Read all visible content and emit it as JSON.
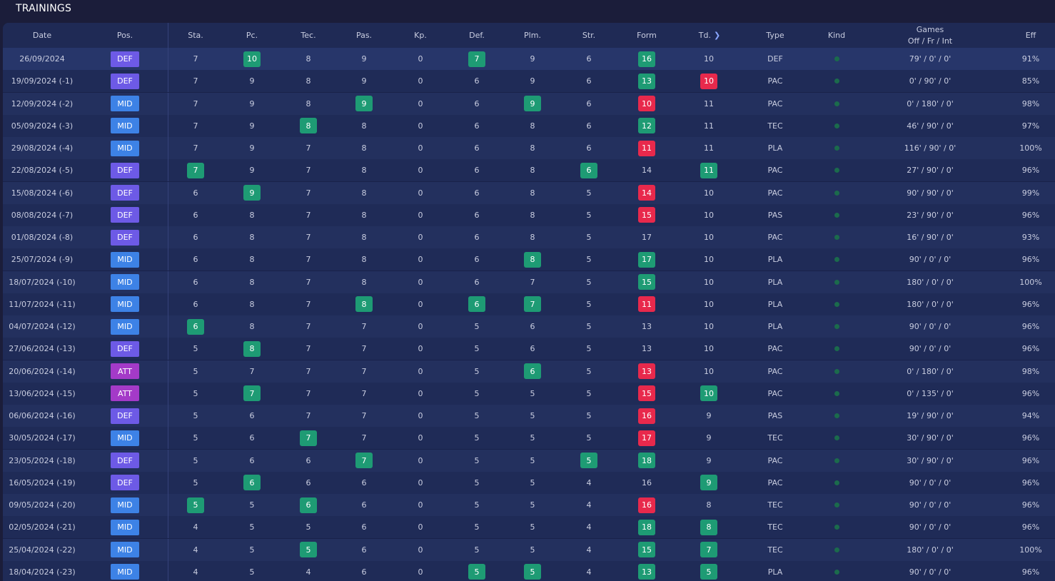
{
  "title": "TRAININGS",
  "headers": {
    "date": "Date",
    "pos": "Pos.",
    "sta": "Sta.",
    "pc": "Pc.",
    "tec": "Tec.",
    "pas": "Pas.",
    "kp": "Kp.",
    "def": "Def.",
    "plm": "Plm.",
    "str": "Str.",
    "form": "Form",
    "td": "Td.",
    "type": "Type",
    "kind": "Kind",
    "games_line1": "Games",
    "games_line2": "Off / Fr / Int",
    "eff": "Eff",
    "sort_icon": "chevron-right-icon"
  },
  "colors": {
    "green": "#1e9b74",
    "red": "#e8294c",
    "DEF": "#6d5ae6",
    "MID": "#3d82e6",
    "ATT": "#a43ac8"
  },
  "rows": [
    {
      "date": "26/09/2024",
      "pos": "DEF",
      "sta": [
        "7",
        ""
      ],
      "pc": [
        "10",
        "g"
      ],
      "tec": [
        "8",
        ""
      ],
      "pas": [
        "9",
        ""
      ],
      "kp": [
        "0",
        ""
      ],
      "def": [
        "7",
        "g"
      ],
      "plm": [
        "9",
        ""
      ],
      "str": [
        "6",
        ""
      ],
      "form": [
        "16",
        "g"
      ],
      "td": [
        "10",
        ""
      ],
      "type": "DEF",
      "games": "79' / 0' / 0'",
      "eff": "91%"
    },
    {
      "date": "19/09/2024 (-1)",
      "pos": "DEF",
      "sta": [
        "7",
        ""
      ],
      "pc": [
        "9",
        ""
      ],
      "tec": [
        "8",
        ""
      ],
      "pas": [
        "9",
        ""
      ],
      "kp": [
        "0",
        ""
      ],
      "def": [
        "6",
        ""
      ],
      "plm": [
        "9",
        ""
      ],
      "str": [
        "6",
        ""
      ],
      "form": [
        "13",
        "g"
      ],
      "td": [
        "10",
        "r"
      ],
      "type": "PAC",
      "games": "0' / 90' / 0'",
      "eff": "85%"
    },
    {
      "date": "12/09/2024 (-2)",
      "pos": "MID",
      "sta": [
        "7",
        ""
      ],
      "pc": [
        "9",
        ""
      ],
      "tec": [
        "8",
        ""
      ],
      "pas": [
        "9",
        "g"
      ],
      "kp": [
        "0",
        ""
      ],
      "def": [
        "6",
        ""
      ],
      "plm": [
        "9",
        "g"
      ],
      "str": [
        "6",
        ""
      ],
      "form": [
        "10",
        "r"
      ],
      "td": [
        "11",
        ""
      ],
      "type": "PAC",
      "games": "0' / 180' / 0'",
      "eff": "98%"
    },
    {
      "date": "05/09/2024 (-3)",
      "pos": "MID",
      "sta": [
        "7",
        ""
      ],
      "pc": [
        "9",
        ""
      ],
      "tec": [
        "8",
        "g"
      ],
      "pas": [
        "8",
        ""
      ],
      "kp": [
        "0",
        ""
      ],
      "def": [
        "6",
        ""
      ],
      "plm": [
        "8",
        ""
      ],
      "str": [
        "6",
        ""
      ],
      "form": [
        "12",
        "g"
      ],
      "td": [
        "11",
        ""
      ],
      "type": "TEC",
      "games": "46' / 90' / 0'",
      "eff": "97%"
    },
    {
      "date": "29/08/2024 (-4)",
      "pos": "MID",
      "sta": [
        "7",
        ""
      ],
      "pc": [
        "9",
        ""
      ],
      "tec": [
        "7",
        ""
      ],
      "pas": [
        "8",
        ""
      ],
      "kp": [
        "0",
        ""
      ],
      "def": [
        "6",
        ""
      ],
      "plm": [
        "8",
        ""
      ],
      "str": [
        "6",
        ""
      ],
      "form": [
        "11",
        "r"
      ],
      "td": [
        "11",
        ""
      ],
      "type": "PLA",
      "games": "116' / 90' / 0'",
      "eff": "100%"
    },
    {
      "date": "22/08/2024 (-5)",
      "pos": "DEF",
      "sta": [
        "7",
        "g"
      ],
      "pc": [
        "9",
        ""
      ],
      "tec": [
        "7",
        ""
      ],
      "pas": [
        "8",
        ""
      ],
      "kp": [
        "0",
        ""
      ],
      "def": [
        "6",
        ""
      ],
      "plm": [
        "8",
        ""
      ],
      "str": [
        "6",
        "g"
      ],
      "form": [
        "14",
        ""
      ],
      "td": [
        "11",
        "g"
      ],
      "type": "PAC",
      "games": "27' / 90' / 0'",
      "eff": "96%"
    },
    {
      "date": "15/08/2024 (-6)",
      "pos": "DEF",
      "sta": [
        "6",
        ""
      ],
      "pc": [
        "9",
        "g"
      ],
      "tec": [
        "7",
        ""
      ],
      "pas": [
        "8",
        ""
      ],
      "kp": [
        "0",
        ""
      ],
      "def": [
        "6",
        ""
      ],
      "plm": [
        "8",
        ""
      ],
      "str": [
        "5",
        ""
      ],
      "form": [
        "14",
        "r"
      ],
      "td": [
        "10",
        ""
      ],
      "type": "PAC",
      "games": "90' / 90' / 0'",
      "eff": "99%"
    },
    {
      "date": "08/08/2024 (-7)",
      "pos": "DEF",
      "sta": [
        "6",
        ""
      ],
      "pc": [
        "8",
        ""
      ],
      "tec": [
        "7",
        ""
      ],
      "pas": [
        "8",
        ""
      ],
      "kp": [
        "0",
        ""
      ],
      "def": [
        "6",
        ""
      ],
      "plm": [
        "8",
        ""
      ],
      "str": [
        "5",
        ""
      ],
      "form": [
        "15",
        "r"
      ],
      "td": [
        "10",
        ""
      ],
      "type": "PAS",
      "games": "23' / 90' / 0'",
      "eff": "96%"
    },
    {
      "date": "01/08/2024 (-8)",
      "pos": "DEF",
      "sta": [
        "6",
        ""
      ],
      "pc": [
        "8",
        ""
      ],
      "tec": [
        "7",
        ""
      ],
      "pas": [
        "8",
        ""
      ],
      "kp": [
        "0",
        ""
      ],
      "def": [
        "6",
        ""
      ],
      "plm": [
        "8",
        ""
      ],
      "str": [
        "5",
        ""
      ],
      "form": [
        "17",
        ""
      ],
      "td": [
        "10",
        ""
      ],
      "type": "PAC",
      "games": "16' / 90' / 0'",
      "eff": "93%"
    },
    {
      "date": "25/07/2024 (-9)",
      "pos": "MID",
      "sta": [
        "6",
        ""
      ],
      "pc": [
        "8",
        ""
      ],
      "tec": [
        "7",
        ""
      ],
      "pas": [
        "8",
        ""
      ],
      "kp": [
        "0",
        ""
      ],
      "def": [
        "6",
        ""
      ],
      "plm": [
        "8",
        "g"
      ],
      "str": [
        "5",
        ""
      ],
      "form": [
        "17",
        "g"
      ],
      "td": [
        "10",
        ""
      ],
      "type": "PLA",
      "games": "90' / 0' / 0'",
      "eff": "96%"
    },
    {
      "date": "18/07/2024 (-10)",
      "pos": "MID",
      "sta": [
        "6",
        ""
      ],
      "pc": [
        "8",
        ""
      ],
      "tec": [
        "7",
        ""
      ],
      "pas": [
        "8",
        ""
      ],
      "kp": [
        "0",
        ""
      ],
      "def": [
        "6",
        ""
      ],
      "plm": [
        "7",
        ""
      ],
      "str": [
        "5",
        ""
      ],
      "form": [
        "15",
        "g"
      ],
      "td": [
        "10",
        ""
      ],
      "type": "PLA",
      "games": "180' / 0' / 0'",
      "eff": "100%"
    },
    {
      "date": "11/07/2024 (-11)",
      "pos": "MID",
      "sta": [
        "6",
        ""
      ],
      "pc": [
        "8",
        ""
      ],
      "tec": [
        "7",
        ""
      ],
      "pas": [
        "8",
        "g"
      ],
      "kp": [
        "0",
        ""
      ],
      "def": [
        "6",
        "g"
      ],
      "plm": [
        "7",
        "g"
      ],
      "str": [
        "5",
        ""
      ],
      "form": [
        "11",
        "r"
      ],
      "td": [
        "10",
        ""
      ],
      "type": "PLA",
      "games": "180' / 0' / 0'",
      "eff": "96%"
    },
    {
      "date": "04/07/2024 (-12)",
      "pos": "MID",
      "sta": [
        "6",
        "g"
      ],
      "pc": [
        "8",
        ""
      ],
      "tec": [
        "7",
        ""
      ],
      "pas": [
        "7",
        ""
      ],
      "kp": [
        "0",
        ""
      ],
      "def": [
        "5",
        ""
      ],
      "plm": [
        "6",
        ""
      ],
      "str": [
        "5",
        ""
      ],
      "form": [
        "13",
        ""
      ],
      "td": [
        "10",
        ""
      ],
      "type": "PLA",
      "games": "90' / 0' / 0'",
      "eff": "96%"
    },
    {
      "date": "27/06/2024 (-13)",
      "pos": "DEF",
      "sta": [
        "5",
        ""
      ],
      "pc": [
        "8",
        "g"
      ],
      "tec": [
        "7",
        ""
      ],
      "pas": [
        "7",
        ""
      ],
      "kp": [
        "0",
        ""
      ],
      "def": [
        "5",
        ""
      ],
      "plm": [
        "6",
        ""
      ],
      "str": [
        "5",
        ""
      ],
      "form": [
        "13",
        ""
      ],
      "td": [
        "10",
        ""
      ],
      "type": "PAC",
      "games": "90' / 0' / 0'",
      "eff": "96%"
    },
    {
      "date": "20/06/2024 (-14)",
      "pos": "ATT",
      "sta": [
        "5",
        ""
      ],
      "pc": [
        "7",
        ""
      ],
      "tec": [
        "7",
        ""
      ],
      "pas": [
        "7",
        ""
      ],
      "kp": [
        "0",
        ""
      ],
      "def": [
        "5",
        ""
      ],
      "plm": [
        "6",
        "g"
      ],
      "str": [
        "5",
        ""
      ],
      "form": [
        "13",
        "r"
      ],
      "td": [
        "10",
        ""
      ],
      "type": "PAC",
      "games": "0' / 180' / 0'",
      "eff": "98%"
    },
    {
      "date": "13/06/2024 (-15)",
      "pos": "ATT",
      "sta": [
        "5",
        ""
      ],
      "pc": [
        "7",
        "g"
      ],
      "tec": [
        "7",
        ""
      ],
      "pas": [
        "7",
        ""
      ],
      "kp": [
        "0",
        ""
      ],
      "def": [
        "5",
        ""
      ],
      "plm": [
        "5",
        ""
      ],
      "str": [
        "5",
        ""
      ],
      "form": [
        "15",
        "r"
      ],
      "td": [
        "10",
        "g"
      ],
      "type": "PAC",
      "games": "0' / 135' / 0'",
      "eff": "96%"
    },
    {
      "date": "06/06/2024 (-16)",
      "pos": "DEF",
      "sta": [
        "5",
        ""
      ],
      "pc": [
        "6",
        ""
      ],
      "tec": [
        "7",
        ""
      ],
      "pas": [
        "7",
        ""
      ],
      "kp": [
        "0",
        ""
      ],
      "def": [
        "5",
        ""
      ],
      "plm": [
        "5",
        ""
      ],
      "str": [
        "5",
        ""
      ],
      "form": [
        "16",
        "r"
      ],
      "td": [
        "9",
        ""
      ],
      "type": "PAS",
      "games": "19' / 90' / 0'",
      "eff": "94%"
    },
    {
      "date": "30/05/2024 (-17)",
      "pos": "MID",
      "sta": [
        "5",
        ""
      ],
      "pc": [
        "6",
        ""
      ],
      "tec": [
        "7",
        "g"
      ],
      "pas": [
        "7",
        ""
      ],
      "kp": [
        "0",
        ""
      ],
      "def": [
        "5",
        ""
      ],
      "plm": [
        "5",
        ""
      ],
      "str": [
        "5",
        ""
      ],
      "form": [
        "17",
        "r"
      ],
      "td": [
        "9",
        ""
      ],
      "type": "TEC",
      "games": "30' / 90' / 0'",
      "eff": "96%"
    },
    {
      "date": "23/05/2024 (-18)",
      "pos": "DEF",
      "sta": [
        "5",
        ""
      ],
      "pc": [
        "6",
        ""
      ],
      "tec": [
        "6",
        ""
      ],
      "pas": [
        "7",
        "g"
      ],
      "kp": [
        "0",
        ""
      ],
      "def": [
        "5",
        ""
      ],
      "plm": [
        "5",
        ""
      ],
      "str": [
        "5",
        "g"
      ],
      "form": [
        "18",
        "g"
      ],
      "td": [
        "9",
        ""
      ],
      "type": "PAC",
      "games": "30' / 90' / 0'",
      "eff": "96%"
    },
    {
      "date": "16/05/2024 (-19)",
      "pos": "DEF",
      "sta": [
        "5",
        ""
      ],
      "pc": [
        "6",
        "g"
      ],
      "tec": [
        "6",
        ""
      ],
      "pas": [
        "6",
        ""
      ],
      "kp": [
        "0",
        ""
      ],
      "def": [
        "5",
        ""
      ],
      "plm": [
        "5",
        ""
      ],
      "str": [
        "4",
        ""
      ],
      "form": [
        "16",
        ""
      ],
      "td": [
        "9",
        "g"
      ],
      "type": "PAC",
      "games": "90' / 0' / 0'",
      "eff": "96%"
    },
    {
      "date": "09/05/2024 (-20)",
      "pos": "MID",
      "sta": [
        "5",
        "g"
      ],
      "pc": [
        "5",
        ""
      ],
      "tec": [
        "6",
        "g"
      ],
      "pas": [
        "6",
        ""
      ],
      "kp": [
        "0",
        ""
      ],
      "def": [
        "5",
        ""
      ],
      "plm": [
        "5",
        ""
      ],
      "str": [
        "4",
        ""
      ],
      "form": [
        "16",
        "r"
      ],
      "td": [
        "8",
        ""
      ],
      "type": "TEC",
      "games": "90' / 0' / 0'",
      "eff": "96%"
    },
    {
      "date": "02/05/2024 (-21)",
      "pos": "MID",
      "sta": [
        "4",
        ""
      ],
      "pc": [
        "5",
        ""
      ],
      "tec": [
        "5",
        ""
      ],
      "pas": [
        "6",
        ""
      ],
      "kp": [
        "0",
        ""
      ],
      "def": [
        "5",
        ""
      ],
      "plm": [
        "5",
        ""
      ],
      "str": [
        "4",
        ""
      ],
      "form": [
        "18",
        "g"
      ],
      "td": [
        "8",
        "g"
      ],
      "type": "TEC",
      "games": "90' / 0' / 0'",
      "eff": "96%"
    },
    {
      "date": "25/04/2024 (-22)",
      "pos": "MID",
      "sta": [
        "4",
        ""
      ],
      "pc": [
        "5",
        ""
      ],
      "tec": [
        "5",
        "g"
      ],
      "pas": [
        "6",
        ""
      ],
      "kp": [
        "0",
        ""
      ],
      "def": [
        "5",
        ""
      ],
      "plm": [
        "5",
        ""
      ],
      "str": [
        "4",
        ""
      ],
      "form": [
        "15",
        "g"
      ],
      "td": [
        "7",
        "g"
      ],
      "type": "TEC",
      "games": "180' / 0' / 0'",
      "eff": "100%"
    },
    {
      "date": "18/04/2024 (-23)",
      "pos": "MID",
      "sta": [
        "4",
        ""
      ],
      "pc": [
        "5",
        ""
      ],
      "tec": [
        "4",
        ""
      ],
      "pas": [
        "6",
        ""
      ],
      "kp": [
        "0",
        ""
      ],
      "def": [
        "5",
        "g"
      ],
      "plm": [
        "5",
        "g"
      ],
      "str": [
        "4",
        ""
      ],
      "form": [
        "13",
        "g"
      ],
      "td": [
        "5",
        "g"
      ],
      "type": "PLA",
      "games": "90' / 0' / 0'",
      "eff": "96%"
    }
  ]
}
